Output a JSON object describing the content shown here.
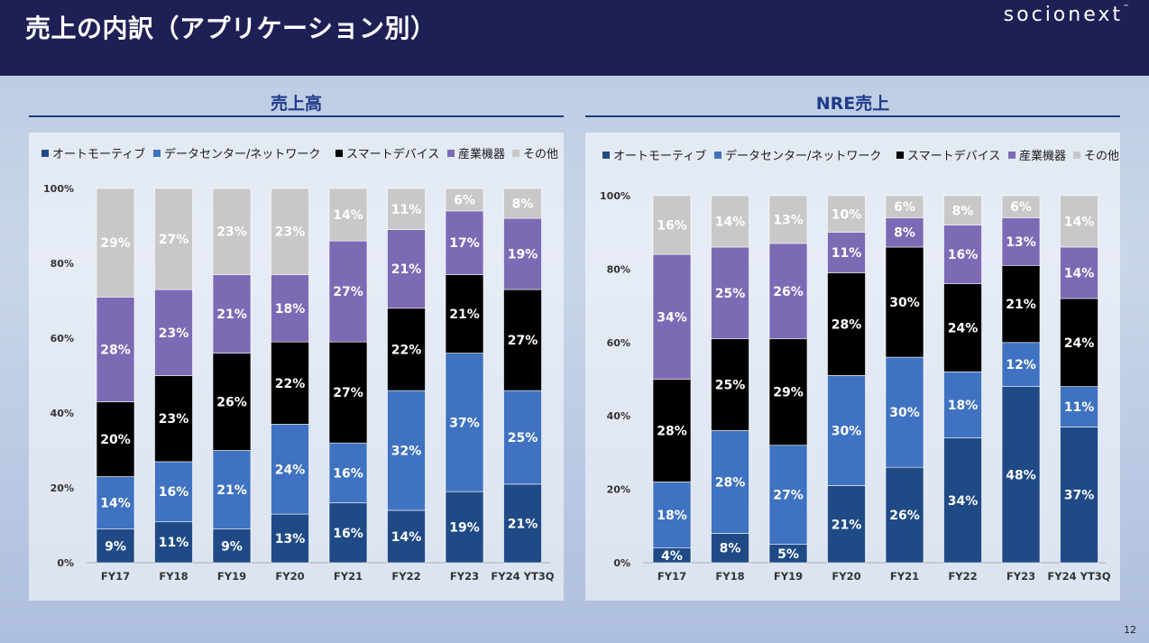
{
  "slide": {
    "title": "売上の内訳（アプリケーション別）",
    "logo": "socionext",
    "logo_mark": "™",
    "page_number": "12"
  },
  "colors": {
    "オートモーティブ": "#1f4a86",
    "データセンター/ネットワーク": "#3f72c0",
    "スマートデバイス": "#000000",
    "産業機器": "#7d6ab5",
    "その他": "#c8c8c8"
  },
  "chart_data": [
    {
      "type": "bar",
      "stacked": true,
      "title": "売上高",
      "categories": [
        "FY17",
        "FY18",
        "FY19",
        "FY20",
        "FY21",
        "FY22",
        "FY23",
        "FY24 YT3Q"
      ],
      "y_ticks": [
        "0%",
        "20%",
        "40%",
        "60%",
        "80%",
        "100%"
      ],
      "ylim": [
        0,
        100
      ],
      "series": [
        {
          "name": "オートモーティブ",
          "values": [
            9,
            11,
            9,
            13,
            16,
            14,
            19,
            21
          ]
        },
        {
          "name": "データセンター/ネットワーク",
          "values": [
            14,
            16,
            21,
            24,
            16,
            32,
            37,
            25
          ]
        },
        {
          "name": "スマートデバイス",
          "values": [
            20,
            23,
            26,
            22,
            27,
            22,
            21,
            27
          ]
        },
        {
          "name": "産業機器",
          "values": [
            28,
            23,
            21,
            18,
            27,
            21,
            17,
            19
          ]
        },
        {
          "name": "その他",
          "values": [
            29,
            27,
            23,
            23,
            14,
            11,
            6,
            8
          ]
        }
      ]
    },
    {
      "type": "bar",
      "stacked": true,
      "title": "NRE売上",
      "categories": [
        "FY17",
        "FY18",
        "FY19",
        "FY20",
        "FY21",
        "FY22",
        "FY23",
        "FY24 YT3Q"
      ],
      "y_ticks": [
        "0%",
        "20%",
        "40%",
        "60%",
        "80%",
        "100%"
      ],
      "ylim": [
        0,
        100
      ],
      "series": [
        {
          "name": "オートモーティブ",
          "values": [
            4,
            8,
            5,
            21,
            26,
            34,
            48,
            37
          ]
        },
        {
          "name": "データセンター/ネットワーク",
          "values": [
            18,
            28,
            27,
            30,
            30,
            18,
            12,
            11
          ]
        },
        {
          "name": "スマートデバイス",
          "values": [
            28,
            25,
            29,
            28,
            30,
            24,
            21,
            24
          ]
        },
        {
          "name": "産業機器",
          "values": [
            34,
            25,
            26,
            11,
            8,
            16,
            13,
            14
          ]
        },
        {
          "name": "その他",
          "values": [
            16,
            14,
            13,
            10,
            6,
            8,
            6,
            14
          ]
        }
      ]
    }
  ]
}
